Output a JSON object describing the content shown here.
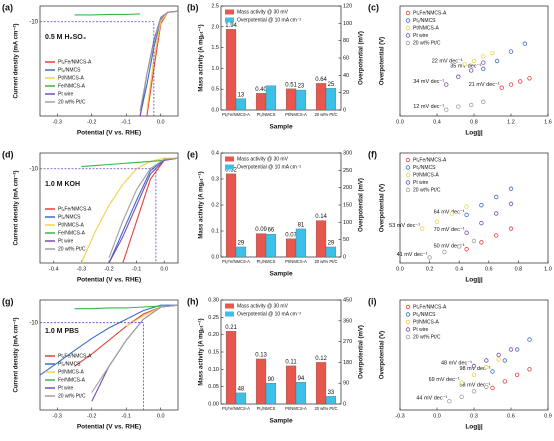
{
  "chart_data": [
    {
      "type": "polarization",
      "label": "(a)",
      "xlabel": "Potential (V vs. RHE)",
      "ylabel": "Current density (mA cm⁻²)",
      "annotation": "0.5 M H₂SO₄",
      "ref_line": {
        "y": -10,
        "x": -0.02,
        "label": "-10"
      },
      "xlim": [
        -0.35,
        0.05
      ],
      "xticks": [
        -0.3,
        -0.2,
        -0.1,
        {
          "value": 0,
          "label": "0.0"
        }
      ],
      "ylim": [
        -100,
        5
      ],
      "x": [
        -0.35,
        -0.3,
        -0.25,
        -0.2,
        -0.15,
        -0.1,
        -0.06,
        -0.04,
        -0.02,
        0,
        0.02,
        0.05
      ],
      "series": [
        {
          "name": "Pt₁Fe/NMCS-A",
          "color": "#e8413c",
          "values": [
            null,
            null,
            null,
            null,
            null,
            null,
            null,
            -100,
            -55,
            -12,
            -1,
            0
          ]
        },
        {
          "name": "Pt₁/NMCS",
          "color": "#3a6fc4",
          "values": [
            null,
            null,
            null,
            null,
            null,
            null,
            -100,
            -70,
            -35,
            -8,
            -1,
            0
          ]
        },
        {
          "name": "Pt/NMCS-A",
          "color": "#f2d24a",
          "values": [
            null,
            null,
            null,
            null,
            null,
            null,
            null,
            -95,
            -45,
            -10,
            -1,
            0
          ]
        },
        {
          "name": "Fe/NMCS-A",
          "color": "#3bb54a",
          "values": [
            null,
            null,
            -3.5,
            -3.5,
            -3,
            -3,
            -2.5,
            null,
            null,
            null,
            null,
            null
          ]
        },
        {
          "name": "Pt wire",
          "color": "#7b4bb8",
          "values": [
            null,
            null,
            null,
            null,
            null,
            null,
            -100,
            -60,
            -28,
            -6,
            -1,
            0
          ]
        },
        {
          "name": "20 wt% Pt/C",
          "color": "#a0a0a0",
          "values": [
            null,
            null,
            null,
            null,
            null,
            null,
            -95,
            -60,
            -30,
            -7,
            -1,
            0
          ]
        }
      ]
    },
    {
      "type": "bar2",
      "label": "(b)",
      "xlabel": "Sample",
      "ylabel": "Mass activity (A mgₚₜ⁻¹)",
      "y2label": "Overpotential (mV)",
      "categories": [
        "Pt₁Fe/NMCS-A",
        "Pt₁/NMCS",
        "Pt/NMCS-A",
        "20 wt% Pt/C"
      ],
      "ylim": [
        0,
        2.5
      ],
      "yticks": [
        {
          "value": 0,
          "label": "0.0"
        },
        0.5,
        {
          "value": 1,
          "label": "1.0"
        },
        1.5,
        {
          "value": 2,
          "label": "2.0"
        },
        2.5
      ],
      "y2lim": [
        0,
        120
      ],
      "y2ticks": [
        0,
        20,
        40,
        60,
        80,
        100,
        120
      ],
      "series": [
        {
          "name": "Mass activity @ 30 mV",
          "color": "#e8574d",
          "values": [
            1.94,
            0.4,
            0.51,
            0.64
          ],
          "value_labels": [
            "1.94",
            "0.40",
            "0.51",
            "0.64"
          ]
        },
        {
          "name": "Overpotential @ 10 mA cm⁻²",
          "color": "#3cc0e8",
          "axis": "y2",
          "values": [
            13,
            28,
            23,
            25
          ],
          "value_labels": [
            "13",
            null,
            "23",
            "25"
          ]
        }
      ]
    },
    {
      "type": "tafel",
      "label": "(c)",
      "xlabel": "Log|j|",
      "ylabel": "Overpotential (V)",
      "xlim": [
        0,
        1.6
      ],
      "xticks": [
        {
          "value": 0,
          "label": "0.0"
        },
        0.4,
        0.8,
        1.2,
        1.6
      ],
      "ylim": [
        0,
        0.07
      ],
      "series": [
        {
          "name": "Pt₁Fe/NMCS-A",
          "color": "#e8413c",
          "slope_label": "21 mV dec⁻¹",
          "x": [
            1.1,
            1.2,
            1.3,
            1.4
          ],
          "values": [
            0.018,
            0.02,
            0.022,
            0.024
          ]
        },
        {
          "name": "Pt₁/NMCS",
          "color": "#3a6fc4",
          "slope_label": "35 mV dec⁻¹",
          "x": [
            0.9,
            1.05,
            1.2,
            1.35
          ],
          "values": [
            0.03,
            0.035,
            0.041,
            0.046
          ]
        },
        {
          "name": "Pt/NMCS-A",
          "color": "#f2d24a",
          "slope_label": "22 mV dec⁻¹",
          "x": [
            0.7,
            0.8,
            0.9,
            1.0
          ],
          "values": [
            0.033,
            0.035,
            0.038,
            0.04
          ]
        },
        {
          "name": "Pt wire",
          "color": "#7b4bb8",
          "slope_label": "34 mV dec⁻¹",
          "x": [
            0.5,
            0.63,
            0.77,
            0.9
          ],
          "values": [
            0.02,
            0.025,
            0.029,
            0.034
          ]
        },
        {
          "name": "20 wt% Pt/C",
          "color": "#a0a0a0",
          "slope_label": "12 mV dec⁻¹",
          "x": [
            0.5,
            0.63,
            0.77,
            0.9
          ],
          "values": [
            0.004,
            0.006,
            0.007,
            0.009
          ]
        }
      ]
    },
    {
      "type": "polarization",
      "label": "(d)",
      "xlabel": "Potential (V vs. RHE)",
      "ylabel": "Current density (mA cm⁻²)",
      "annotation": "1.0 M KOH",
      "ref_line": {
        "y": -10,
        "x": -0.03,
        "label": "-10"
      },
      "xlim": [
        -0.45,
        0.05
      ],
      "xticks": [
        -0.4,
        -0.3,
        -0.2,
        -0.1,
        {
          "value": 0,
          "label": "0.0"
        }
      ],
      "ylim": [
        -100,
        5
      ],
      "x": [
        -0.45,
        -0.4,
        -0.35,
        -0.3,
        -0.25,
        -0.2,
        -0.15,
        -0.1,
        -0.05,
        0,
        0.05
      ],
      "series": [
        {
          "name": "Pt₁Fe/NMCS-A",
          "color": "#e8413c",
          "values": [
            null,
            null,
            null,
            null,
            null,
            null,
            -100,
            -60,
            -20,
            -2,
            0
          ]
        },
        {
          "name": "Pt₁/NMCS",
          "color": "#3a6fc4",
          "values": [
            null,
            null,
            null,
            null,
            null,
            -100,
            -70,
            -40,
            -12,
            -1,
            0
          ]
        },
        {
          "name": "Pt/NMCS-A",
          "color": "#f2d24a",
          "values": [
            null,
            null,
            null,
            -100,
            -70,
            -45,
            -25,
            -10,
            -3,
            0,
            0
          ]
        },
        {
          "name": "Fe/NMCS-A",
          "color": "#3bb54a",
          "values": [
            null,
            null,
            null,
            -8,
            -7,
            -6,
            -5,
            -4,
            -3,
            -2,
            null
          ]
        },
        {
          "name": "Pt wire",
          "color": "#7b4bb8",
          "values": [
            null,
            null,
            null,
            null,
            null,
            -100,
            -75,
            -45,
            -15,
            -2,
            0
          ]
        },
        {
          "name": "20 wt% Pt/C",
          "color": "#a0a0a0",
          "values": [
            null,
            null,
            null,
            null,
            null,
            -95,
            -60,
            -30,
            -10,
            -1,
            0
          ]
        }
      ]
    },
    {
      "type": "bar2",
      "label": "(e)",
      "xlabel": "Sample",
      "ylabel": "Mass activity (A mgₚₜ⁻¹)",
      "y2label": "Overpotential (mV)",
      "categories": [
        "Pt₁Fe/NMCS-A",
        "Pt₁/NMCS",
        "Pt/NMCS-A",
        "20 wt% Pt/C"
      ],
      "ylim": [
        0,
        0.4
      ],
      "yticks": [
        {
          "value": 0,
          "label": "0.0"
        },
        0.1,
        0.2,
        0.3,
        0.4
      ],
      "y2lim": [
        0,
        300
      ],
      "y2ticks": [
        0,
        50,
        100,
        150,
        200,
        250,
        300
      ],
      "series": [
        {
          "name": "Mass activity @ 30 mV",
          "color": "#e8574d",
          "values": [
            0.32,
            0.09,
            0.07,
            0.14
          ],
          "value_labels": [
            "0.32",
            "0.09",
            "0.07",
            "0.14"
          ]
        },
        {
          "name": "Overpotential @ 10 mA cm⁻²",
          "color": "#3cc0e8",
          "axis": "y2",
          "values": [
            29,
            66,
            81,
            29
          ],
          "value_labels": [
            "29",
            "66",
            "81",
            "29"
          ]
        }
      ]
    },
    {
      "type": "tafel",
      "label": "(f)",
      "xlabel": "Log|j|",
      "ylabel": "Overpotential (V)",
      "xlim": [
        0,
        1
      ],
      "xticks": [
        {
          "value": 0,
          "label": "0.0"
        },
        0.2,
        0.4,
        0.6,
        0.8,
        {
          "value": 1,
          "label": "1.0"
        }
      ],
      "ylim": [
        0,
        0.08
      ],
      "series": [
        {
          "name": "Pt₁Fe/NMCS-A",
          "color": "#e8413c",
          "slope_label": "50 mV dec⁻¹",
          "x": [
            0.45,
            0.55,
            0.65,
            0.75
          ],
          "values": [
            0.01,
            0.015,
            0.02,
            0.025
          ]
        },
        {
          "name": "Pt₁/NMCS",
          "color": "#3a6fc4",
          "slope_label": "64 mV dec⁻¹",
          "x": [
            0.45,
            0.55,
            0.65,
            0.75
          ],
          "values": [
            0.035,
            0.042,
            0.048,
            0.054
          ]
        },
        {
          "name": "Pt/NMCS-A",
          "color": "#f2d24a",
          "slope_label": "53 mV dec⁻¹",
          "x": [
            0.15,
            0.25,
            0.35,
            0.45
          ],
          "values": [
            0.025,
            0.03,
            0.036,
            0.041
          ]
        },
        {
          "name": "Pt wire",
          "color": "#7b4bb8",
          "slope_label": "70 mV dec⁻¹",
          "x": [
            0.45,
            0.55,
            0.65,
            0.75
          ],
          "values": [
            0.022,
            0.029,
            0.036,
            0.043
          ]
        },
        {
          "name": "20 wt% Pt/C",
          "color": "#a0a0a0",
          "slope_label": "41 mV dec⁻¹",
          "x": [
            0.2,
            0.3,
            0.4,
            0.5
          ],
          "values": [
            0.004,
            0.008,
            0.012,
            0.016
          ]
        }
      ]
    },
    {
      "type": "polarization",
      "label": "(g)",
      "xlabel": "Potential (V vs. RHE)",
      "ylabel": "Current density (mA cm⁻²)",
      "annotation": "1.0 M PBS",
      "ref_line": {
        "y": -10,
        "x": -0.05,
        "label": "-10"
      },
      "xlim": [
        -0.35,
        0.05
      ],
      "xticks": [
        -0.3,
        -0.2,
        -0.1,
        {
          "value": 0,
          "label": "0.0"
        }
      ],
      "ylim": [
        -60,
        3
      ],
      "x": [
        -0.35,
        -0.3,
        -0.25,
        -0.2,
        -0.15,
        -0.1,
        -0.05,
        0,
        0.05
      ],
      "series": [
        {
          "name": "Pt₁Fe/NMCS-A",
          "color": "#e8413c",
          "values": [
            null,
            null,
            -35,
            -28,
            -20,
            -12,
            -5,
            -1,
            0
          ]
        },
        {
          "name": "Pt₁/NMCS",
          "color": "#3a6fc4",
          "values": [
            -40,
            -33,
            -26,
            -19,
            -13,
            -8,
            -3,
            0,
            0
          ]
        },
        {
          "name": "Pt/NMCS-A",
          "color": "#f2d24a",
          "values": [
            null,
            null,
            null,
            null,
            null,
            -12,
            -6,
            -1,
            0
          ]
        },
        {
          "name": "Fe/NMCS-A",
          "color": "#3bb54a",
          "values": [
            null,
            null,
            -2,
            -2,
            -1.5,
            -1.5,
            -1,
            -0.5,
            null
          ]
        },
        {
          "name": "Pt wire",
          "color": "#7b4bb8",
          "values": [
            null,
            null,
            null,
            -55,
            -35,
            -20,
            -8,
            -1,
            0
          ]
        },
        {
          "name": "20 wt% Pt/C",
          "color": "#a0a0a0",
          "values": [
            null,
            null,
            null,
            -50,
            -35,
            -20,
            -8,
            -1,
            0
          ]
        }
      ]
    },
    {
      "type": "bar2",
      "label": "(h)",
      "xlabel": "Sample",
      "ylabel": "Mass activity (A mgₚₜ⁻¹)",
      "y2label": "Overpotential (mV)",
      "categories": [
        "Pt₁Fe/NMCS-A",
        "Pt₁/NMCS",
        "Pt/NMCS-A",
        "20 wt% Pt/C"
      ],
      "ylim": [
        0,
        0.3
      ],
      "yticks": [
        {
          "value": 0,
          "label": "0.00"
        },
        0.05,
        {
          "value": 0.1,
          "label": "0.10"
        },
        0.15,
        {
          "value": 0.2,
          "label": "0.20"
        },
        0.25,
        {
          "value": 0.3,
          "label": "0.30"
        }
      ],
      "y2lim": [
        0,
        450
      ],
      "y2ticks": [
        0,
        90,
        180,
        270,
        360,
        450
      ],
      "series": [
        {
          "name": "Mass activity @ 30 mV",
          "color": "#e8574d",
          "values": [
            0.21,
            0.13,
            0.11,
            0.12
          ],
          "value_labels": [
            "0.21",
            "0.13",
            "0.11",
            "0.12"
          ]
        },
        {
          "name": "Overpotential @ 10 mA cm⁻²",
          "color": "#3cc0e8",
          "axis": "y2",
          "values": [
            48,
            90,
            94,
            33
          ],
          "value_labels": [
            "48",
            "90",
            "94",
            "33"
          ]
        }
      ]
    },
    {
      "type": "tafel",
      "label": "(i)",
      "xlabel": "Log|j|",
      "ylabel": "Overpotential (V)",
      "xlim": [
        -0.3,
        0.9
      ],
      "xticks": [
        -0.3,
        {
          "value": 0,
          "label": "0.0"
        },
        0.3,
        0.6,
        0.9
      ],
      "ylim": [
        0,
        0.1
      ],
      "series": [
        {
          "name": "Pt₁Fe/NMCS-A",
          "color": "#e8413c",
          "slope_label": "58 mV dec⁻¹",
          "x": [
            0.45,
            0.55,
            0.65,
            0.75
          ],
          "values": [
            0.02,
            0.026,
            0.032,
            0.037
          ]
        },
        {
          "name": "Pt₁/NMCS",
          "color": "#3a6fc4",
          "slope_label": "98 mV dec⁻¹",
          "x": [
            0.45,
            0.55,
            0.65,
            0.75
          ],
          "values": [
            0.035,
            0.045,
            0.055,
            0.064
          ]
        },
        {
          "name": "Pt/NMCS-A",
          "color": "#f2d24a",
          "slope_label": "69 mV dec⁻¹",
          "x": [
            0.2,
            0.3,
            0.4,
            0.5
          ],
          "values": [
            0.025,
            0.032,
            0.039,
            0.046
          ]
        },
        {
          "name": "Pt wire",
          "color": "#7b4bb8",
          "slope_label": "48 mV dec⁻¹",
          "x": [
            0.3,
            0.4,
            0.5,
            0.6
          ],
          "values": [
            0.04,
            0.045,
            0.05,
            0.055
          ]
        },
        {
          "name": "20 wt% Pt/C",
          "color": "#a0a0a0",
          "slope_label": "44 mV dec⁻¹",
          "x": [
            0.1,
            0.2,
            0.3,
            0.4
          ],
          "values": [
            0.008,
            0.012,
            0.017,
            0.021
          ]
        }
      ]
    }
  ]
}
